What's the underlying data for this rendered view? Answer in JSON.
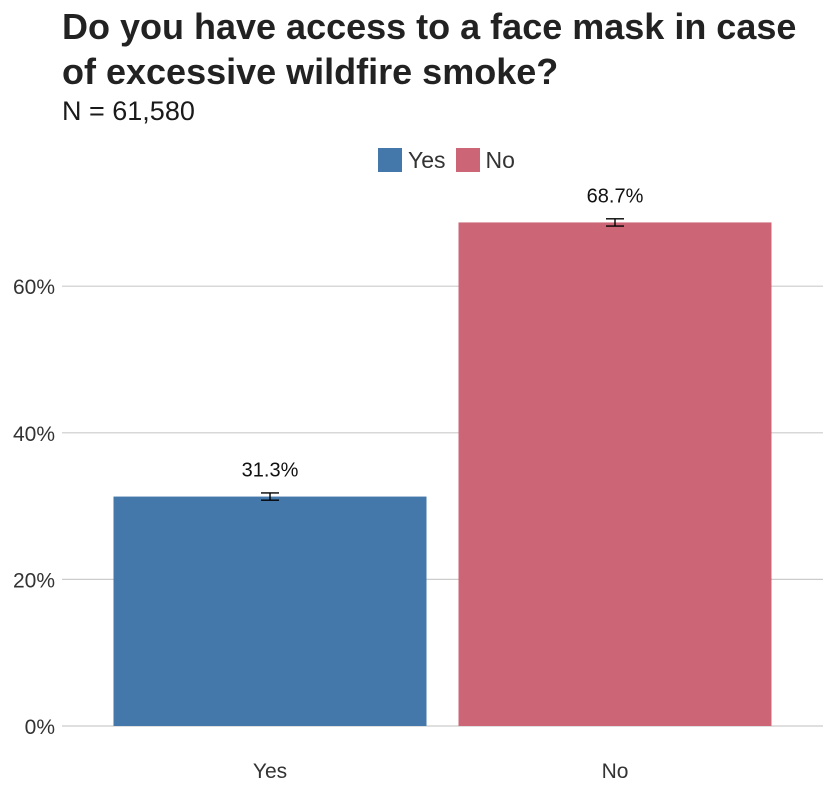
{
  "chart_data": {
    "type": "bar",
    "title": "Do you have access to a face mask in case of excessive wildfire smoke?",
    "subtitle": "N = 61,580",
    "categories": [
      "Yes",
      "No"
    ],
    "values": [
      31.3,
      68.7
    ],
    "value_labels": [
      "31.3%",
      "68.7%"
    ],
    "error_bars": [
      [
        30.8,
        31.8
      ],
      [
        68.2,
        69.2
      ]
    ],
    "colors": [
      "#4477aa",
      "#cc6677"
    ],
    "legend": {
      "position": "top",
      "entries": [
        "Yes",
        "No"
      ]
    },
    "yticks": [
      0,
      20,
      40,
      60
    ],
    "ytick_labels": [
      "0%",
      "20%",
      "40%",
      "60%"
    ],
    "ylim": [
      0,
      72
    ],
    "grid": "horizontal",
    "xlabel": "",
    "ylabel": ""
  }
}
